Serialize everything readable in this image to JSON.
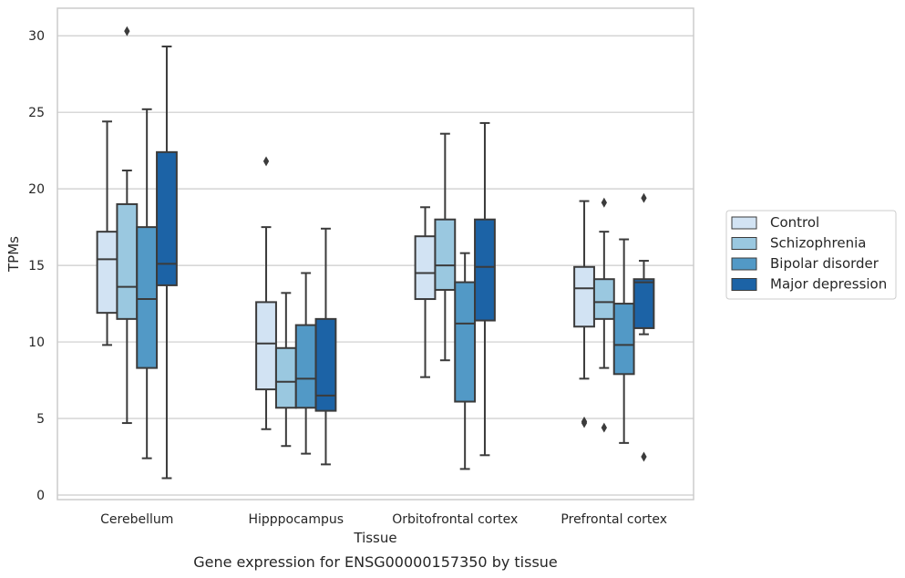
{
  "caption": "Gene expression for ENSG00000157350 by tissue",
  "chart_data": {
    "type": "box",
    "xlabel": "Tissue",
    "ylabel": "TPMs",
    "ylim": [
      -0.3,
      31.8
    ],
    "yticks": [
      0,
      5,
      10,
      15,
      20,
      25,
      30
    ],
    "grid": "horizontal",
    "legend_position": "right",
    "categories": [
      "Cerebellum",
      "Hipppocampus",
      "Orbitofrontal cortex",
      "Prefrontal cortex"
    ],
    "series": [
      {
        "name": "Control",
        "color": "#d2e3f3",
        "boxes": [
          {
            "whisker_low": 9.8,
            "q1": 11.9,
            "median": 15.4,
            "q3": 17.2,
            "whisker_high": 24.4,
            "outliers": []
          },
          {
            "whisker_low": 4.3,
            "q1": 6.9,
            "median": 9.9,
            "q3": 12.6,
            "whisker_high": 17.5,
            "outliers": [
              21.8
            ]
          },
          {
            "whisker_low": 7.7,
            "q1": 12.8,
            "median": 14.5,
            "q3": 16.9,
            "whisker_high": 18.8,
            "outliers": []
          },
          {
            "whisker_low": 7.6,
            "q1": 11.0,
            "median": 13.5,
            "q3": 14.9,
            "whisker_high": 19.2,
            "outliers": [
              4.7,
              4.8
            ]
          }
        ]
      },
      {
        "name": "Schizophrenia",
        "color": "#9ac8e0",
        "boxes": [
          {
            "whisker_low": 4.7,
            "q1": 11.5,
            "median": 13.6,
            "q3": 19.0,
            "whisker_high": 21.2,
            "outliers": [
              30.3
            ]
          },
          {
            "whisker_low": 3.2,
            "q1": 5.7,
            "median": 7.4,
            "q3": 9.6,
            "whisker_high": 13.2,
            "outliers": []
          },
          {
            "whisker_low": 8.8,
            "q1": 13.4,
            "median": 15.0,
            "q3": 18.0,
            "whisker_high": 23.6,
            "outliers": []
          },
          {
            "whisker_low": 8.3,
            "q1": 11.5,
            "median": 12.6,
            "q3": 14.1,
            "whisker_high": 17.2,
            "outliers": [
              19.1,
              4.4
            ]
          }
        ]
      },
      {
        "name": "Bipolar disorder",
        "color": "#5299c6",
        "boxes": [
          {
            "whisker_low": 2.4,
            "q1": 8.3,
            "median": 12.8,
            "q3": 17.5,
            "whisker_high": 25.2,
            "outliers": []
          },
          {
            "whisker_low": 2.7,
            "q1": 5.7,
            "median": 7.6,
            "q3": 11.1,
            "whisker_high": 14.5,
            "outliers": []
          },
          {
            "whisker_low": 1.7,
            "q1": 6.1,
            "median": 11.2,
            "q3": 13.9,
            "whisker_high": 15.8,
            "outliers": []
          },
          {
            "whisker_low": 3.4,
            "q1": 7.9,
            "median": 9.8,
            "q3": 12.5,
            "whisker_high": 16.7,
            "outliers": []
          }
        ]
      },
      {
        "name": "Major depression",
        "color": "#1c63a6",
        "boxes": [
          {
            "whisker_low": 1.1,
            "q1": 13.7,
            "median": 15.1,
            "q3": 22.4,
            "whisker_high": 29.3,
            "outliers": []
          },
          {
            "whisker_low": 2.0,
            "q1": 5.5,
            "median": 6.5,
            "q3": 11.5,
            "whisker_high": 17.4,
            "outliers": []
          },
          {
            "whisker_low": 2.6,
            "q1": 11.4,
            "median": 14.9,
            "q3": 18.0,
            "whisker_high": 24.3,
            "outliers": []
          },
          {
            "whisker_low": 10.5,
            "q1": 10.9,
            "median": 13.9,
            "q3": 14.1,
            "whisker_high": 15.3,
            "outliers": [
              19.4,
              2.5
            ]
          }
        ]
      }
    ]
  }
}
